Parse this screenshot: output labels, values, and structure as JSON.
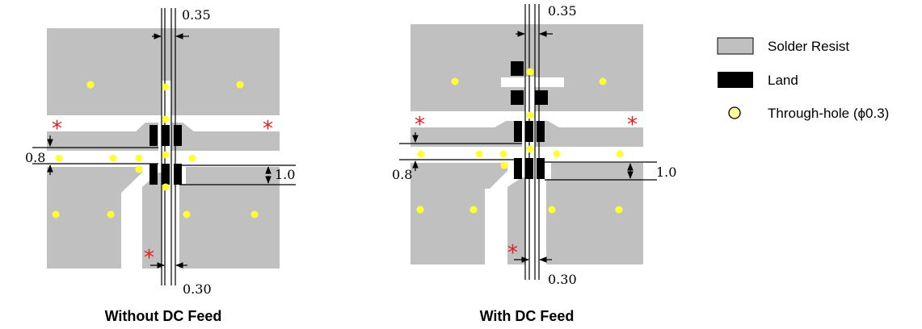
{
  "colors": {
    "solder_resist": "#c0c0c0",
    "land": "#000000",
    "through_hole": "#ffff33",
    "marker": "#e02020"
  },
  "diagrams": [
    {
      "caption": "Without DC Feed",
      "dims": {
        "top": "0.35",
        "bottom": "0.30",
        "left": "0.8",
        "right": "1.0"
      },
      "marker": "*"
    },
    {
      "caption": "With DC Feed",
      "dims": {
        "top": "0.35",
        "bottom": "0.30",
        "left": "0.8",
        "right": "1.0"
      },
      "marker": "*"
    }
  ],
  "legend": [
    {
      "icon": "solder-resist-swatch",
      "label": "Solder Resist"
    },
    {
      "icon": "land-swatch",
      "label": "Land"
    },
    {
      "icon": "through-hole-circle",
      "label": "Through-hole (ϕ0.3)"
    }
  ]
}
